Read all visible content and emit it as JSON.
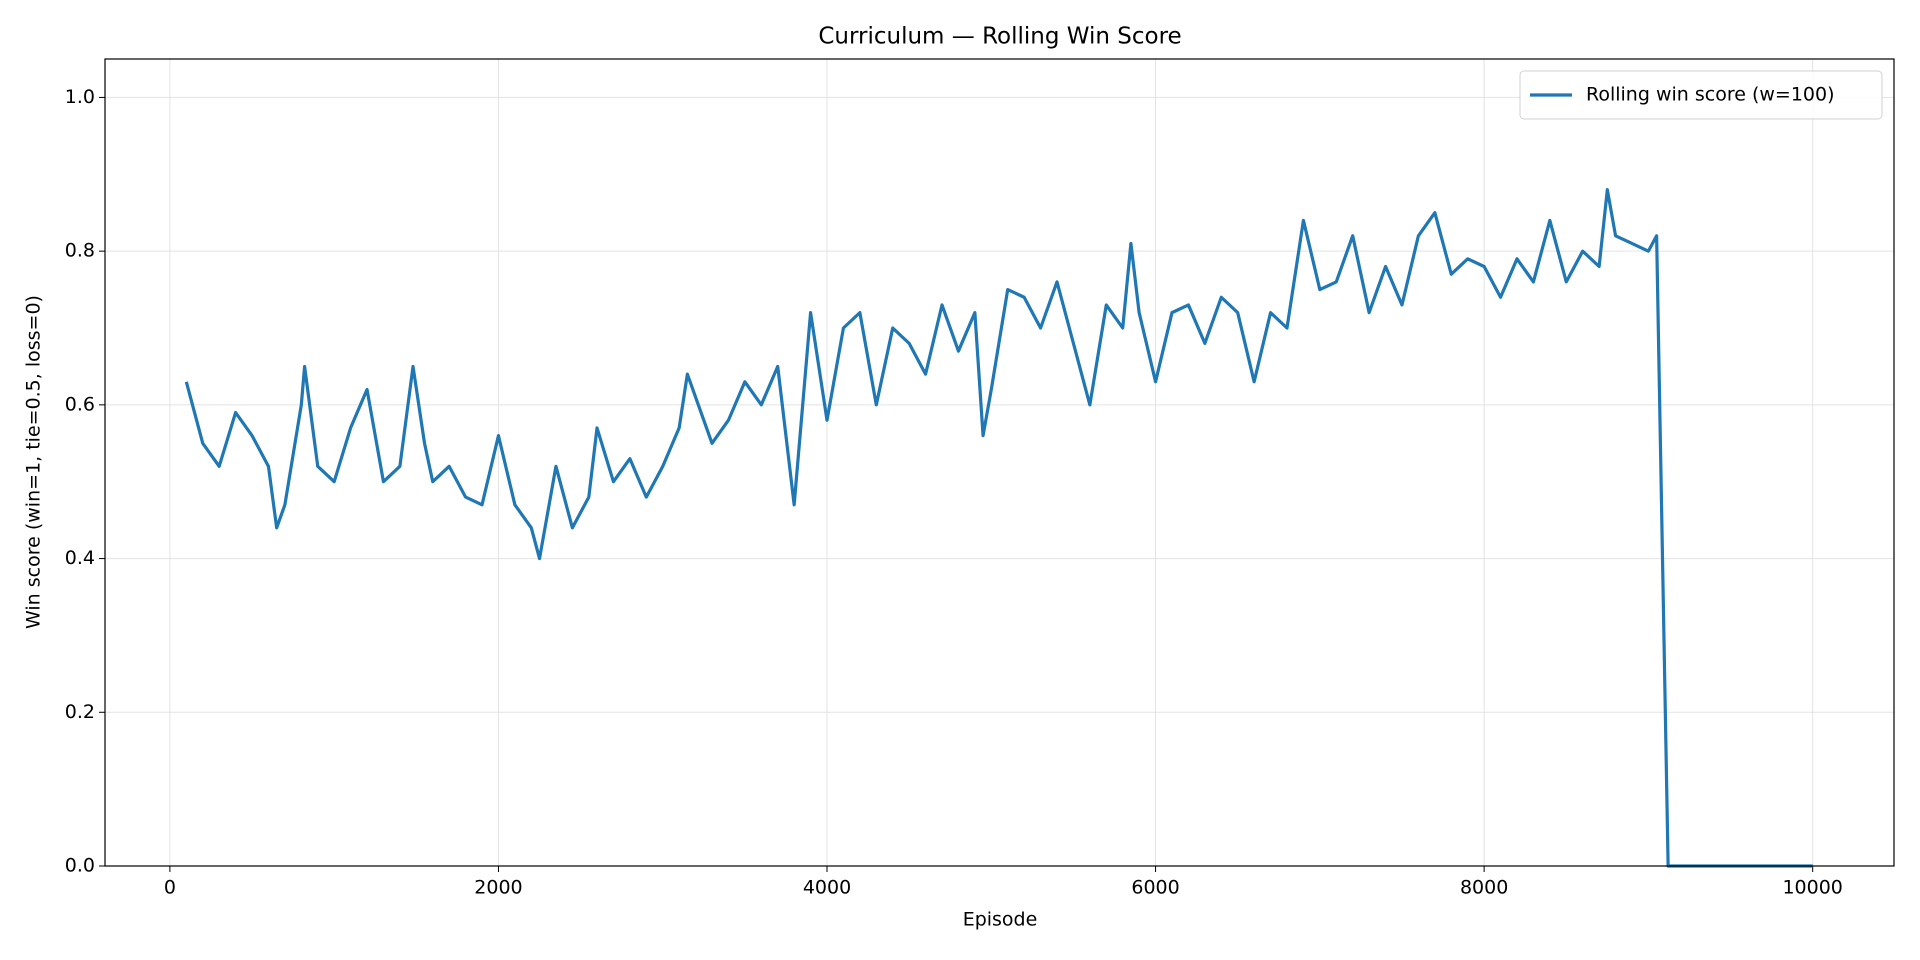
{
  "chart_data": {
    "type": "line",
    "title": "Curriculum — Rolling Win Score",
    "x_label": "Episode",
    "y_label": "Win score (win=1, tie=0.5, loss=0)",
    "x": [
      100,
      200,
      300,
      400,
      500,
      600,
      650,
      700,
      800,
      820,
      900,
      1000,
      1100,
      1200,
      1300,
      1400,
      1480,
      1550,
      1600,
      1700,
      1800,
      1900,
      2000,
      2100,
      2200,
      2250,
      2350,
      2450,
      2550,
      2600,
      2700,
      2800,
      2900,
      3000,
      3100,
      3150,
      3300,
      3400,
      3500,
      3600,
      3700,
      3800,
      3900,
      4000,
      4100,
      4200,
      4300,
      4400,
      4500,
      4600,
      4700,
      4800,
      4900,
      4950,
      5000,
      5100,
      5200,
      5300,
      5400,
      5500,
      5600,
      5700,
      5800,
      5850,
      5900,
      6000,
      6100,
      6200,
      6300,
      6400,
      6500,
      6600,
      6700,
      6800,
      6900,
      7000,
      7100,
      7200,
      7300,
      7400,
      7500,
      7600,
      7700,
      7800,
      7900,
      8000,
      8100,
      8200,
      8300,
      8400,
      8500,
      8600,
      8700,
      8750,
      8800,
      8900,
      9000,
      9050,
      9120,
      10000
    ],
    "series": [
      {
        "name": "Rolling win score (w=100)",
        "color": "#1f77b4",
        "values": [
          0.63,
          0.55,
          0.52,
          0.59,
          0.56,
          0.52,
          0.44,
          0.47,
          0.6,
          0.65,
          0.52,
          0.5,
          0.57,
          0.62,
          0.5,
          0.52,
          0.65,
          0.55,
          0.5,
          0.52,
          0.48,
          0.47,
          0.56,
          0.47,
          0.44,
          0.4,
          0.52,
          0.44,
          0.48,
          0.57,
          0.5,
          0.53,
          0.48,
          0.52,
          0.57,
          0.64,
          0.55,
          0.58,
          0.63,
          0.6,
          0.65,
          0.47,
          0.72,
          0.58,
          0.7,
          0.72,
          0.6,
          0.7,
          0.68,
          0.64,
          0.73,
          0.67,
          0.72,
          0.56,
          0.62,
          0.75,
          0.74,
          0.7,
          0.76,
          0.68,
          0.6,
          0.73,
          0.7,
          0.81,
          0.72,
          0.63,
          0.72,
          0.73,
          0.68,
          0.74,
          0.72,
          0.63,
          0.72,
          0.7,
          0.84,
          0.75,
          0.76,
          0.82,
          0.72,
          0.78,
          0.73,
          0.82,
          0.85,
          0.77,
          0.79,
          0.78,
          0.74,
          0.79,
          0.76,
          0.84,
          0.76,
          0.8,
          0.78,
          0.88,
          0.82,
          0.81,
          0.8,
          0.82,
          0.0,
          0.0
        ]
      }
    ],
    "xlim": [
      -395,
      10495
    ],
    "ylim": [
      0,
      1.05
    ],
    "xticks": [
      0,
      2000,
      4000,
      6000,
      8000,
      10000
    ],
    "yticks": [
      {
        "value": 0,
        "label": "0.0"
      },
      0.2,
      0.4,
      0.6,
      0.8,
      {
        "value": 1,
        "label": "1.0"
      }
    ],
    "grid": true,
    "legend": "upper right"
  }
}
